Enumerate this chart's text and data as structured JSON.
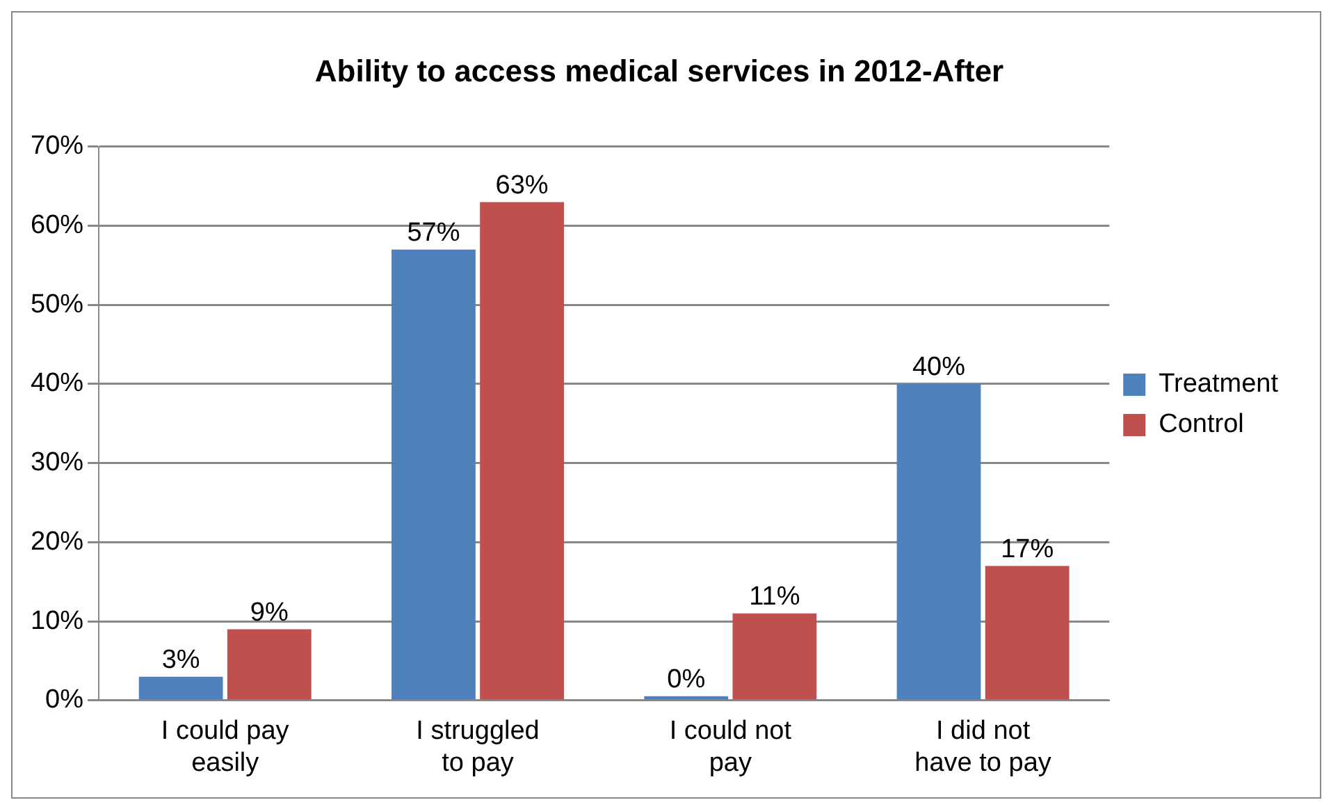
{
  "chart_data": {
    "type": "bar",
    "title": "Ability to access medical services in 2012-After",
    "categories": [
      "I could pay easily",
      "I struggled to pay",
      "I could not pay",
      "I did not have to pay"
    ],
    "series": [
      {
        "name": "Treatment",
        "color": "#4f81bd",
        "values": [
          3,
          57,
          0,
          40
        ],
        "value_labels": [
          "3%",
          "57%",
          "0%",
          "40%"
        ]
      },
      {
        "name": "Control",
        "color": "#c0504d",
        "values": [
          9,
          63,
          11,
          17
        ],
        "value_labels": [
          "9%",
          "63%",
          "11%",
          "17%"
        ]
      }
    ],
    "ylim": [
      0,
      70
    ],
    "yticks": [
      {
        "value": 0,
        "label": "0%"
      },
      {
        "value": 10,
        "label": "10%"
      },
      {
        "value": 20,
        "label": "20%"
      },
      {
        "value": 30,
        "label": "30%"
      },
      {
        "value": 40,
        "label": "40%"
      },
      {
        "value": 50,
        "label": "50%"
      },
      {
        "value": 60,
        "label": "60%"
      },
      {
        "value": 70,
        "label": "70%"
      }
    ],
    "grid": "y",
    "legend": "right"
  }
}
